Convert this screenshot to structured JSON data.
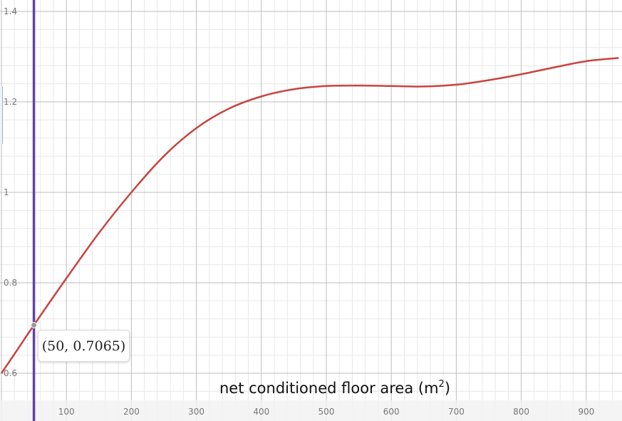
{
  "chart_data": {
    "type": "line",
    "xlabel_base": "net conditioned floor area (m",
    "xlabel_sup": "2",
    "xlabel_end": ")",
    "xlim": [
      0,
      950
    ],
    "ylim": [
      0.57,
      1.44
    ],
    "x_ticks": [
      100,
      200,
      300,
      400,
      500,
      600,
      700,
      800,
      900
    ],
    "y_ticks": [
      0.6,
      0.8,
      1,
      1.2,
      1.4
    ],
    "y_tick_labels": [
      "0.6",
      "0.8",
      "1",
      "1.2",
      "1.4"
    ],
    "grid": true,
    "series": [
      {
        "color": "#c74440",
        "x": [
          0,
          25,
          50,
          100,
          150,
          200,
          250,
          300,
          350,
          400,
          450,
          500,
          550,
          600,
          650,
          700,
          750,
          800,
          850,
          900,
          950
        ],
        "y": [
          0.6,
          0.653,
          0.7065,
          0.81,
          0.91,
          1.0,
          1.08,
          1.142,
          1.185,
          1.212,
          1.228,
          1.235,
          1.236,
          1.235,
          1.234,
          1.238,
          1.248,
          1.261,
          1.276,
          1.29,
          1.297
        ]
      }
    ],
    "vertical_line": {
      "x": 50,
      "color": "#6042a6"
    },
    "point": {
      "x": 50,
      "y": 0.7065,
      "label": "(50, 0.7065)"
    }
  }
}
